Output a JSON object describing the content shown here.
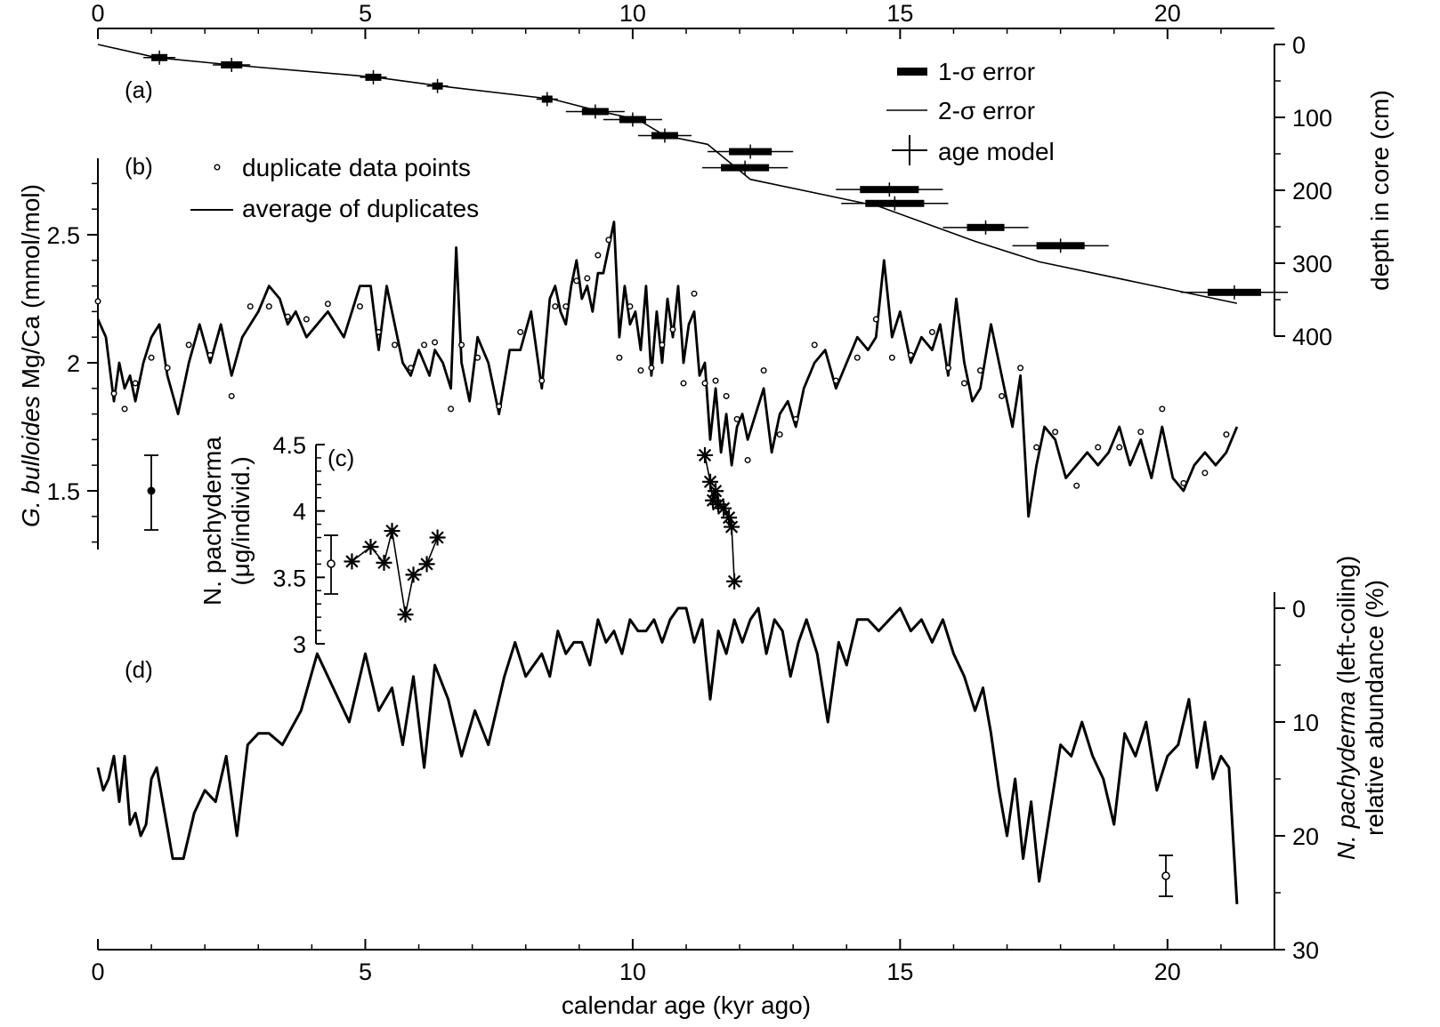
{
  "chart_data": {
    "type": "line",
    "xlim": [
      0,
      22
    ],
    "x_ticks": [
      0,
      5,
      10,
      15,
      20
    ],
    "xlabel": "calendar age (kyr ago)",
    "panels": {
      "a": {
        "label": "(a)",
        "type": "line",
        "ylabel": "depth in core (cm)",
        "ylim": [
          0,
          400
        ],
        "y_ticks": [
          0,
          100,
          200,
          300,
          400
        ],
        "legend": [
          "1-σ error",
          "2-σ error",
          "age model"
        ],
        "age_model": {
          "x": [
            0,
            1.1,
            2.5,
            5.2,
            6.4,
            8.5,
            9.4,
            10.1,
            10.6,
            11.4,
            12.2,
            14.6,
            16.4,
            17.6,
            21.3
          ],
          "y": [
            0,
            18,
            28,
            45,
            57,
            75,
            92,
            103,
            125,
            137,
            185,
            222,
            270,
            298,
            355
          ]
        },
        "dates": {
          "age": [
            1.15,
            2.5,
            5.15,
            6.35,
            8.4,
            9.3,
            10.0,
            10.6,
            12.2,
            12.1,
            14.8,
            14.9,
            16.6,
            18.0,
            21.25
          ],
          "depth": [
            18,
            28,
            45,
            57,
            75,
            92,
            103,
            125,
            147,
            169,
            199,
            218,
            251,
            276,
            340
          ],
          "err1": [
            0.15,
            0.2,
            0.15,
            0.1,
            0.1,
            0.25,
            0.25,
            0.25,
            0.4,
            0.45,
            0.55,
            0.55,
            0.35,
            0.45,
            0.5
          ],
          "err2": [
            0.3,
            0.35,
            0.25,
            0.2,
            0.2,
            0.55,
            0.55,
            0.5,
            0.8,
            0.8,
            1.0,
            1.0,
            0.8,
            0.9,
            1.0
          ]
        }
      },
      "b": {
        "label": "(b)",
        "type": "line",
        "ylabel": "G. bulloides Mg/Ca (mmol/mol)",
        "ylabel_italic": "G. bulloides",
        "ylabel_rest": " Mg/Ca (mmol/mol)",
        "ylim": [
          1.2,
          2.8
        ],
        "y_ticks": [
          1.5,
          2,
          2.5
        ],
        "legend": [
          "duplicate data points",
          "average of duplicates"
        ],
        "x": [
          0,
          0.15,
          0.3,
          0.4,
          0.5,
          0.6,
          0.7,
          0.85,
          1.0,
          1.15,
          1.3,
          1.5,
          1.7,
          1.9,
          2.1,
          2.3,
          2.5,
          2.7,
          2.85,
          3.0,
          3.2,
          3.4,
          3.55,
          3.7,
          3.9,
          4.1,
          4.3,
          4.6,
          4.9,
          5.1,
          5.25,
          5.4,
          5.55,
          5.7,
          5.85,
          6.0,
          6.1,
          6.2,
          6.3,
          6.45,
          6.6,
          6.7,
          6.8,
          6.95,
          7.1,
          7.3,
          7.5,
          7.7,
          7.9,
          8.1,
          8.3,
          8.45,
          8.55,
          8.65,
          8.75,
          8.85,
          8.95,
          9.05,
          9.15,
          9.25,
          9.35,
          9.45,
          9.55,
          9.65,
          9.75,
          9.85,
          9.95,
          10.05,
          10.15,
          10.25,
          10.35,
          10.45,
          10.55,
          10.65,
          10.75,
          10.85,
          10.95,
          11.05,
          11.15,
          11.25,
          11.35,
          11.45,
          11.55,
          11.65,
          11.75,
          11.85,
          11.95,
          12.05,
          12.15,
          12.3,
          12.45,
          12.6,
          12.75,
          12.9,
          13.05,
          13.2,
          13.4,
          13.6,
          13.8,
          14.0,
          14.2,
          14.4,
          14.55,
          14.7,
          14.85,
          15.0,
          15.2,
          15.4,
          15.6,
          15.75,
          15.9,
          16.05,
          16.2,
          16.35,
          16.5,
          16.7,
          16.9,
          17.1,
          17.25,
          17.4,
          17.55,
          17.7,
          17.9,
          18.1,
          18.3,
          18.5,
          18.7,
          18.9,
          19.1,
          19.3,
          19.5,
          19.7,
          19.9,
          20.1,
          20.3,
          20.5,
          20.7,
          20.9,
          21.1,
          21.3
        ],
        "values": [
          2.17,
          2.1,
          1.85,
          2.0,
          1.9,
          1.95,
          1.85,
          2.0,
          2.1,
          2.15,
          1.95,
          1.8,
          2.0,
          2.15,
          2.0,
          2.15,
          1.95,
          2.1,
          2.15,
          2.2,
          2.3,
          2.25,
          2.15,
          2.2,
          2.1,
          2.15,
          2.2,
          2.1,
          2.3,
          2.3,
          2.05,
          2.3,
          2.15,
          2.0,
          1.95,
          2.05,
          2.0,
          1.95,
          2.05,
          2.0,
          1.9,
          2.45,
          2.0,
          1.85,
          2.1,
          2.0,
          1.8,
          2.05,
          2.05,
          2.2,
          1.9,
          2.25,
          2.3,
          2.2,
          2.15,
          2.3,
          2.4,
          2.25,
          2.3,
          2.2,
          2.35,
          2.35,
          2.45,
          2.55,
          2.1,
          2.3,
          2.15,
          2.2,
          2.05,
          2.3,
          1.95,
          2.2,
          2.0,
          2.25,
          2.1,
          2.3,
          2.0,
          2.15,
          2.2,
          1.95,
          2.0,
          1.7,
          1.9,
          1.65,
          1.8,
          1.6,
          1.75,
          1.8,
          1.7,
          1.8,
          1.9,
          1.65,
          1.8,
          1.85,
          1.75,
          1.9,
          2.0,
          2.05,
          1.9,
          2.0,
          2.1,
          2.05,
          2.1,
          2.4,
          2.1,
          2.2,
          2.0,
          2.1,
          2.05,
          2.15,
          1.95,
          2.25,
          2.0,
          1.85,
          1.9,
          2.15,
          1.95,
          1.75,
          1.95,
          1.4,
          1.6,
          1.75,
          1.7,
          1.55,
          1.6,
          1.65,
          1.6,
          1.65,
          1.75,
          1.6,
          1.7,
          1.55,
          1.75,
          1.55,
          1.5,
          1.6,
          1.65,
          1.6,
          1.65,
          1.75
        ]
      },
      "c": {
        "label": "(c)",
        "type": "line",
        "ylabel": "N. pachyderma (μg/individ.)",
        "ylabel_line1": "N. pachyderma",
        "ylabel_line2": "(μg/individ.)",
        "ylim": [
          3,
          4.5
        ],
        "y_ticks": [
          3,
          3.5,
          4,
          4.5
        ],
        "x": [
          4.75,
          5.1,
          5.35,
          5.5,
          5.75,
          5.9,
          6.15,
          6.35
        ],
        "values": [
          3.62,
          3.73,
          3.61,
          3.85,
          3.22,
          3.52,
          3.6,
          3.8
        ],
        "x2": [
          11.35,
          11.45,
          11.5,
          11.55,
          11.6,
          11.7,
          11.8,
          11.85,
          11.9
        ],
        "values2": [
          4.42,
          4.22,
          4.08,
          4.15,
          4.05,
          4.02,
          3.95,
          3.88,
          3.47
        ]
      },
      "d": {
        "label": "(d)",
        "type": "line",
        "ylabel": "N. pachyderma (left-coiling) relative abundance (%)",
        "ylabel_italic": "N. pachyderma",
        "ylabel_rest": " (left-coiling)",
        "ylabel_line2": "relative abundance (%)",
        "ylim": [
          0,
          30
        ],
        "y_reversed": true,
        "y_ticks": [
          0,
          10,
          20,
          30
        ],
        "x": [
          0,
          0.1,
          0.2,
          0.3,
          0.4,
          0.5,
          0.6,
          0.7,
          0.8,
          0.9,
          1.0,
          1.1,
          1.25,
          1.4,
          1.6,
          1.8,
          2.0,
          2.2,
          2.4,
          2.6,
          2.8,
          3.0,
          3.2,
          3.45,
          3.8,
          4.1,
          4.4,
          4.7,
          5.0,
          5.25,
          5.5,
          5.7,
          5.9,
          6.1,
          6.3,
          6.55,
          6.8,
          7.05,
          7.3,
          7.6,
          7.8,
          8.0,
          8.15,
          8.3,
          8.45,
          8.6,
          8.75,
          8.9,
          9.05,
          9.2,
          9.35,
          9.5,
          9.65,
          9.8,
          9.95,
          10.1,
          10.25,
          10.4,
          10.55,
          10.7,
          10.85,
          11.0,
          11.15,
          11.3,
          11.45,
          11.6,
          11.75,
          11.9,
          12.05,
          12.2,
          12.35,
          12.5,
          12.65,
          12.8,
          12.95,
          13.1,
          13.25,
          13.45,
          13.65,
          13.85,
          14.0,
          14.2,
          14.4,
          14.6,
          14.8,
          15.0,
          15.2,
          15.4,
          15.6,
          15.8,
          16.0,
          16.2,
          16.4,
          16.55,
          16.7,
          16.85,
          17.0,
          17.15,
          17.3,
          17.45,
          17.6,
          17.8,
          18.0,
          18.2,
          18.4,
          18.6,
          18.8,
          19.0,
          19.2,
          19.4,
          19.6,
          19.8,
          20.0,
          20.2,
          20.4,
          20.55,
          20.7,
          20.85,
          21.0,
          21.15,
          21.3
        ],
        "values": [
          14,
          16,
          15,
          13,
          17,
          13,
          19,
          18,
          20,
          19,
          15,
          14,
          18,
          22,
          22,
          18,
          16,
          17,
          13,
          20,
          12,
          11,
          11,
          12,
          9,
          4,
          7,
          10,
          4,
          9,
          7,
          12,
          6,
          14,
          5,
          8,
          13,
          9,
          12,
          6,
          3,
          6,
          5,
          4,
          6,
          2,
          4,
          3,
          3,
          5,
          1,
          3,
          2,
          4,
          1,
          2,
          2,
          1,
          3,
          1,
          0,
          0,
          3,
          1,
          8,
          2,
          4,
          1,
          3,
          1,
          0,
          4,
          1,
          2,
          6,
          3,
          1,
          4,
          10,
          3,
          5,
          1,
          1,
          2,
          1,
          0,
          2,
          1,
          3,
          1,
          4,
          6,
          9,
          7,
          11,
          16,
          20,
          15,
          22,
          17,
          24,
          18,
          12,
          13,
          10,
          13,
          15,
          19,
          11,
          13,
          10,
          16,
          13,
          12,
          8,
          14,
          10,
          15,
          13,
          14,
          26
        ]
      }
    }
  }
}
